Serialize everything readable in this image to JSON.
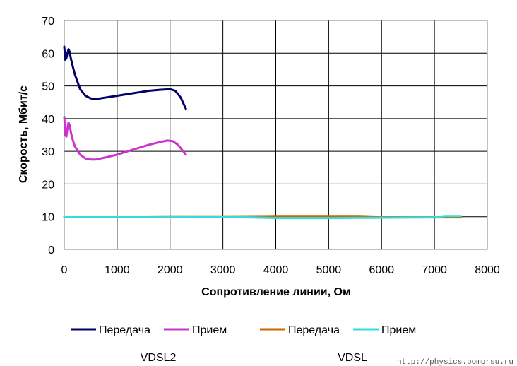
{
  "chart_data": {
    "type": "line",
    "xlabel": "Сопротивление линии, Ом",
    "ylabel": "Скорость, Мбит/с",
    "xlim": [
      0,
      8000
    ],
    "ylim": [
      0,
      70
    ],
    "xticks": [
      0,
      1000,
      2000,
      3000,
      4000,
      5000,
      6000,
      7000,
      8000
    ],
    "yticks": [
      0,
      10,
      20,
      30,
      40,
      50,
      60,
      70
    ],
    "grid": true,
    "legend_position": "bottom",
    "series": [
      {
        "name": "Передача",
        "group": "VDSL2",
        "color": "#000066",
        "x": [
          0,
          20,
          40,
          60,
          80,
          100,
          130,
          160,
          200,
          300,
          400,
          500,
          600,
          800,
          1000,
          1200,
          1400,
          1600,
          1800,
          2000,
          2100,
          2200,
          2300
        ],
        "y": [
          62,
          58,
          58.5,
          60,
          61.2,
          60.5,
          58,
          56,
          53.5,
          49,
          47,
          46.2,
          46,
          46.5,
          47,
          47.5,
          48,
          48.5,
          48.8,
          49,
          48.5,
          46.5,
          43
        ]
      },
      {
        "name": "Прием",
        "group": "VDSL2",
        "color": "#cc33cc",
        "x": [
          0,
          20,
          40,
          60,
          80,
          100,
          130,
          160,
          200,
          300,
          400,
          500,
          600,
          800,
          1000,
          1200,
          1400,
          1600,
          1800,
          1950,
          2050,
          2150,
          2300
        ],
        "y": [
          40.5,
          35,
          34.5,
          37,
          38.8,
          38,
          35.5,
          33.5,
          31.5,
          29,
          27.8,
          27.5,
          27.5,
          28.2,
          29,
          30,
          31,
          32,
          32.8,
          33.3,
          33.1,
          32,
          29
        ]
      },
      {
        "name": "Передача",
        "group": "VDSL",
        "color": "#cc6600",
        "x": [
          0,
          1000,
          2000,
          3000,
          4000,
          5000,
          5600,
          6000,
          7000,
          7500
        ],
        "y": [
          10,
          10,
          10.1,
          10.1,
          10.2,
          10.2,
          10.2,
          10,
          9.8,
          9.8
        ]
      },
      {
        "name": "Прием",
        "group": "VDSL",
        "color": "#33dddd",
        "x": [
          0,
          1000,
          2000,
          3000,
          4000,
          5000,
          6000,
          7000,
          7200,
          7500
        ],
        "y": [
          10,
          10,
          10.1,
          10,
          9.6,
          9.6,
          9.7,
          9.8,
          10.2,
          10.2
        ]
      }
    ]
  },
  "legend": {
    "items": [
      {
        "label": "Передача",
        "color": "#000066"
      },
      {
        "label": "Прием",
        "color": "#cc33cc"
      },
      {
        "label": "Передача",
        "color": "#cc6600"
      },
      {
        "label": "Прием",
        "color": "#33dddd"
      }
    ],
    "group_labels": [
      "VDSL2",
      "VDSL"
    ]
  },
  "watermark": "http://physics.pomorsu.ru"
}
